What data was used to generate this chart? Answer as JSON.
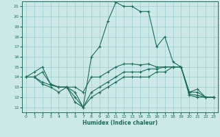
{
  "title": "",
  "xlabel": "Humidex (Indice chaleur)",
  "xlim": [
    -0.5,
    23.5
  ],
  "ylim": [
    10.5,
    21.5
  ],
  "yticks": [
    11,
    12,
    13,
    14,
    15,
    16,
    17,
    18,
    19,
    20,
    21
  ],
  "xticks": [
    0,
    1,
    2,
    3,
    4,
    5,
    6,
    7,
    8,
    9,
    10,
    11,
    12,
    13,
    14,
    15,
    16,
    17,
    18,
    19,
    20,
    21,
    22,
    23
  ],
  "bg_color": "#cce8e8",
  "grid_color": "#99cccc",
  "line_color": "#1a6b5a",
  "lines": [
    {
      "x": [
        0,
        1,
        2,
        3,
        4,
        5,
        6,
        7,
        8,
        9,
        10,
        11,
        12,
        13,
        14,
        15,
        16,
        17,
        18,
        19,
        20,
        21,
        22,
        23
      ],
      "y": [
        14,
        14,
        14.5,
        13.3,
        13.0,
        13.0,
        11.5,
        11.0,
        16.0,
        17.0,
        19.5,
        21.4,
        21.0,
        21.0,
        20.5,
        20.5,
        17.0,
        18.0,
        15.5,
        15.0,
        12.5,
        12.8,
        12.0,
        12.0
      ],
      "marker": true
    },
    {
      "x": [
        0,
        1,
        2,
        3,
        4,
        5,
        6,
        7,
        8,
        9,
        10,
        11,
        12,
        13,
        14,
        15,
        16,
        17,
        18,
        19,
        20,
        21,
        22,
        23
      ],
      "y": [
        14,
        14.5,
        15.0,
        13.3,
        13.0,
        13.0,
        13.0,
        12.5,
        14.0,
        14.0,
        14.5,
        15.0,
        15.3,
        15.3,
        15.2,
        15.3,
        15.0,
        15.0,
        15.0,
        15.0,
        12.5,
        12.5,
        12.0,
        12.0
      ],
      "marker": true
    },
    {
      "x": [
        0,
        1,
        2,
        3,
        4,
        5,
        6,
        7,
        8,
        9,
        10,
        11,
        12,
        13,
        14,
        15,
        16,
        17,
        18,
        19,
        20,
        21,
        22,
        23
      ],
      "y": [
        14,
        14.0,
        13.5,
        13.2,
        13.0,
        13.0,
        12.5,
        11.0,
        12.5,
        13.0,
        13.5,
        14.0,
        14.5,
        14.5,
        14.5,
        14.8,
        14.8,
        15.0,
        15.0,
        15.0,
        12.3,
        12.2,
        12.0,
        12.0
      ],
      "marker": true
    },
    {
      "x": [
        0,
        1,
        2,
        3,
        4,
        5,
        6,
        7,
        8,
        9,
        10,
        11,
        12,
        13,
        14,
        15,
        16,
        17,
        18,
        19,
        20,
        21,
        22,
        23
      ],
      "y": [
        14,
        14.0,
        13.3,
        13.0,
        12.5,
        13.0,
        12.0,
        11.0,
        12.0,
        12.5,
        13.0,
        13.5,
        14.0,
        14.0,
        14.0,
        14.0,
        14.5,
        14.5,
        15.0,
        15.0,
        12.2,
        12.0,
        12.0,
        12.0
      ],
      "marker": true
    }
  ]
}
